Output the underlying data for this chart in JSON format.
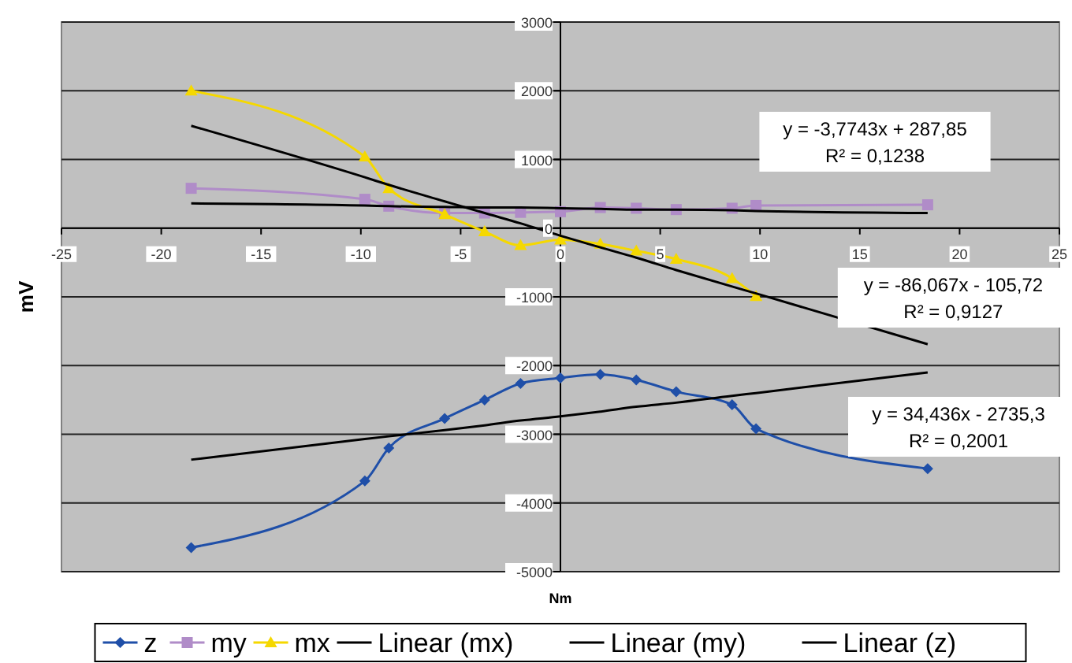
{
  "chart_data": {
    "type": "line",
    "xlabel": "Nm",
    "ylabel": "mV",
    "x": [
      -18.5,
      -9.8,
      -8.6,
      -5.8,
      -3.8,
      -2,
      0,
      2,
      3.8,
      5.8,
      8.6,
      9.8,
      18.4
    ],
    "series": [
      {
        "name": "z",
        "color": "#1f4fa8",
        "marker": "diamond",
        "values": [
          -4650,
          -3680,
          -3200,
          -2770,
          -2500,
          -2260,
          -2180,
          -2130,
          -2210,
          -2380,
          -2570,
          -2920,
          -3500
        ]
      },
      {
        "name": "my",
        "color": "#b08cc8",
        "marker": "square",
        "values": [
          580,
          420,
          320,
          220,
          220,
          230,
          240,
          300,
          290,
          270,
          290,
          330,
          340
        ]
      },
      {
        "name": "mx",
        "color": "#f5d800",
        "marker": "triangle",
        "values": [
          2000,
          1040,
          580,
          200,
          -50,
          -250,
          -170,
          -230,
          -330,
          -450,
          -730,
          -990,
          null
        ]
      },
      {
        "name": "Linear (mx)",
        "color": "#000000",
        "marker": "none",
        "values": [
          1490,
          740,
          630,
          390,
          220,
          70,
          -110,
          -280,
          -430,
          -610,
          -850,
          -950,
          -1690
        ]
      },
      {
        "name": "Linear (my)",
        "color": "#000000",
        "marker": "none",
        "values": [
          360,
          330,
          320,
          310,
          300,
          300,
          290,
          280,
          270,
          270,
          260,
          250,
          220
        ]
      },
      {
        "name": "Linear (z)",
        "color": "#000000",
        "marker": "none",
        "values": [
          -3370,
          -3070,
          -3030,
          -2940,
          -2870,
          -2800,
          -2740,
          -2670,
          -2600,
          -2540,
          -2440,
          -2400,
          -2100
        ]
      }
    ],
    "xlim": [
      -25,
      25
    ],
    "xticks": [
      -25,
      -20,
      -15,
      -10,
      -5,
      0,
      5,
      10,
      15,
      20,
      25
    ],
    "ylim": [
      -5000,
      3000
    ],
    "yticks": [
      -5000,
      -4000,
      -3000,
      -2000,
      -1000,
      0,
      1000,
      2000,
      3000
    ],
    "grid": "y",
    "legend": "bottom",
    "annotations": [
      "y = -3,7743x + 287,85\nR² = 0,1238",
      "y = -86,067x - 105,72\nR² = 0,9127",
      "y = 34,436x - 2735,3\nR² = 0,2001"
    ]
  }
}
